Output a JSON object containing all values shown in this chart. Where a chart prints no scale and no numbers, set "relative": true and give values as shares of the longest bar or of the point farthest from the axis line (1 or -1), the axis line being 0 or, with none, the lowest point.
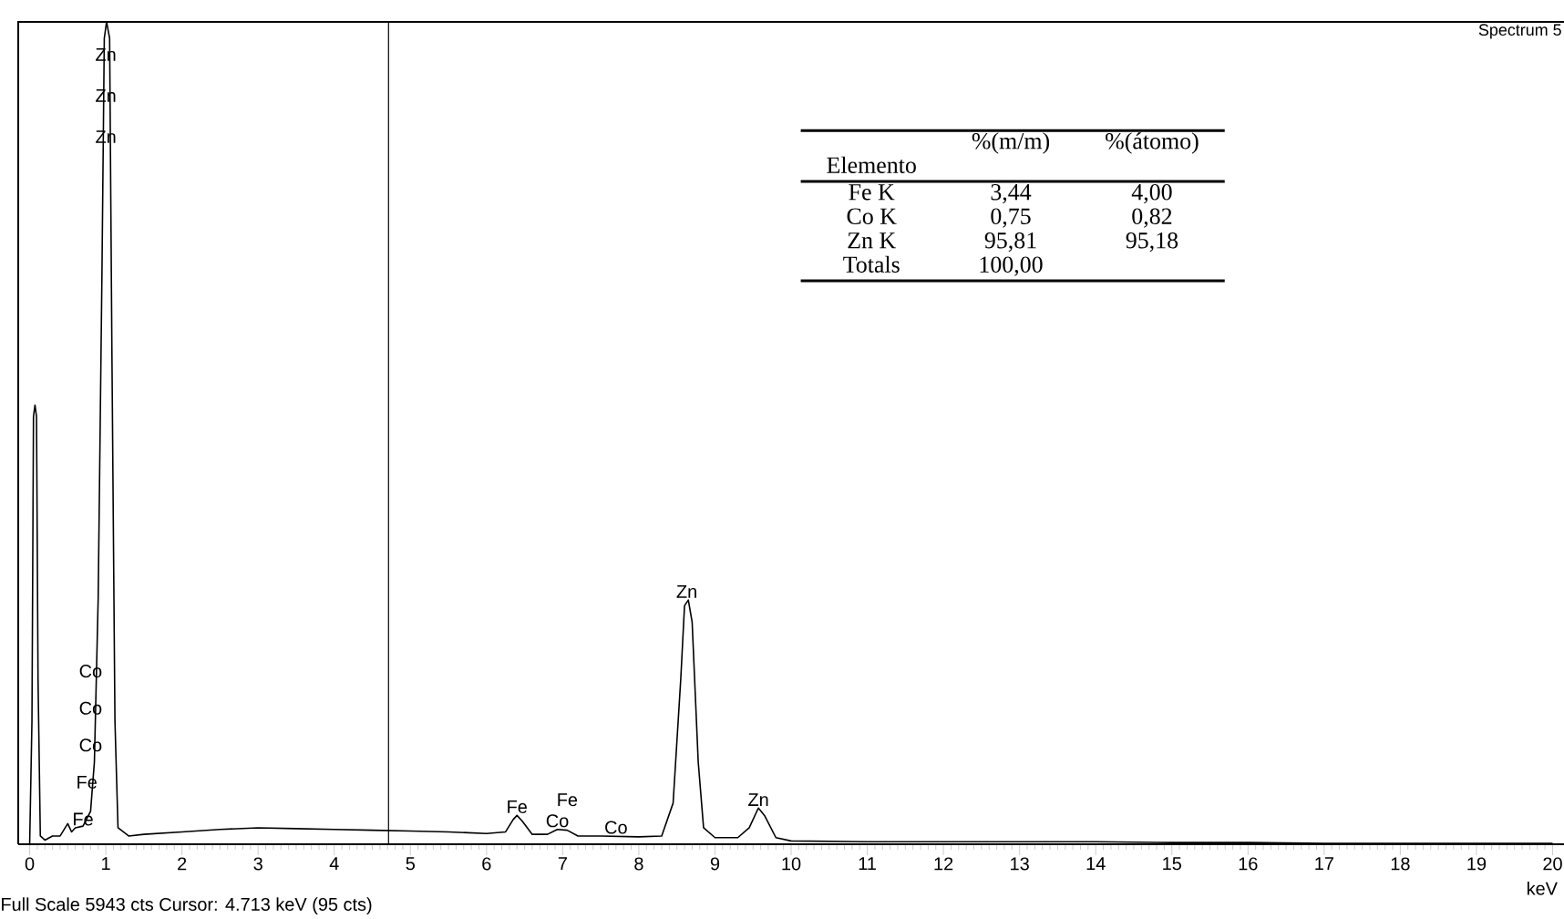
{
  "chart_data": {
    "type": "line",
    "relative": true,
    "xlabel": "keV",
    "color": "#000000",
    "xlim": [
      -0.15,
      20.15
    ],
    "xticks": [
      0,
      1,
      2,
      3,
      4,
      5,
      6,
      7,
      8,
      9,
      10,
      11,
      12,
      13,
      14,
      15,
      16,
      17,
      18,
      19,
      20
    ],
    "grid": false,
    "marker": "none",
    "line_style": "solid",
    "x": [
      0,
      0.03,
      0.05,
      0.07,
      0.09,
      0.11,
      0.14,
      0.2,
      0.3,
      0.4,
      0.5,
      0.55,
      0.6,
      0.7,
      0.8,
      0.85,
      0.9,
      0.95,
      0.98,
      1.01,
      1.05,
      1.08,
      1.12,
      1.16,
      1.3,
      1.5,
      2,
      2.5,
      3,
      3.5,
      4,
      4.5,
      5,
      5.5,
      6,
      6.25,
      6.35,
      6.4,
      6.47,
      6.6,
      6.8,
      6.93,
      7.06,
      7.2,
      7.5,
      8,
      8.3,
      8.45,
      8.55,
      8.6,
      8.65,
      8.7,
      8.78,
      8.85,
      9.0,
      9.3,
      9.45,
      9.57,
      9.65,
      9.8,
      10,
      11,
      12,
      13,
      14,
      15,
      16,
      17,
      18,
      19,
      20
    ],
    "values": [
      0,
      0.15,
      0.52,
      0.534,
      0.52,
      0.2,
      0.01,
      0.005,
      0.01,
      0.01,
      0.025,
      0.015,
      0.02,
      0.022,
      0.04,
      0.1,
      0.3,
      0.7,
      0.98,
      1,
      0.98,
      0.6,
      0.15,
      0.02,
      0.01,
      0.012,
      0.015,
      0.018,
      0.02,
      0.019,
      0.018,
      0.017,
      0.016,
      0.015,
      0.013,
      0.015,
      0.03,
      0.035,
      0.028,
      0.012,
      0.012,
      0.018,
      0.017,
      0.01,
      0.01,
      0.009,
      0.01,
      0.05,
      0.2,
      0.29,
      0.297,
      0.27,
      0.1,
      0.02,
      0.008,
      0.008,
      0.02,
      0.044,
      0.035,
      0.008,
      0.004,
      0.003,
      0.003,
      0.003,
      0.003,
      0.002,
      0.002,
      0.001,
      0.001,
      0.001,
      0.001
    ],
    "ref_lines": [
      {
        "axis": "x",
        "value": 4.713,
        "color": "#000000"
      }
    ],
    "annotations": [
      "Spectrum 5",
      "Full Scale 5943 cts  Cursor: 4.713 keV (95 cts)",
      "Elemento",
      "%(m/m)",
      "%(átomo)",
      "Fe K",
      "3,44",
      "4,00",
      "Co K",
      "0,75",
      "0,82",
      "Zn K",
      "95,81",
      "95,18",
      "Totals",
      "100,00",
      {
        "text": "Zn",
        "x": 1.0,
        "y": 0.95
      },
      {
        "text": "Zn",
        "x": 1.0,
        "y": 0.9
      },
      {
        "text": "Zn",
        "x": 1.0,
        "y": 0.85
      },
      {
        "text": "Co",
        "x": 0.8,
        "y": 0.2
      },
      {
        "text": "Co",
        "x": 0.8,
        "y": 0.155
      },
      {
        "text": "Co",
        "x": 0.8,
        "y": 0.11
      },
      {
        "text": "Fe",
        "x": 0.75,
        "y": 0.065
      },
      {
        "text": "Fe",
        "x": 0.7,
        "y": 0.02
      },
      {
        "text": "Fe",
        "x": 6.4,
        "y": 0.035
      },
      {
        "text": "Co",
        "x": 6.93,
        "y": 0.018
      },
      {
        "text": "Fe",
        "x": 7.06,
        "y": 0.017
      },
      {
        "text": "Co",
        "x": 7.7,
        "y": 0.01
      },
      {
        "text": "Zn",
        "x": 8.63,
        "y": 0.297
      },
      {
        "text": "Zn",
        "x": 9.57,
        "y": 0.044
      }
    ]
  }
}
